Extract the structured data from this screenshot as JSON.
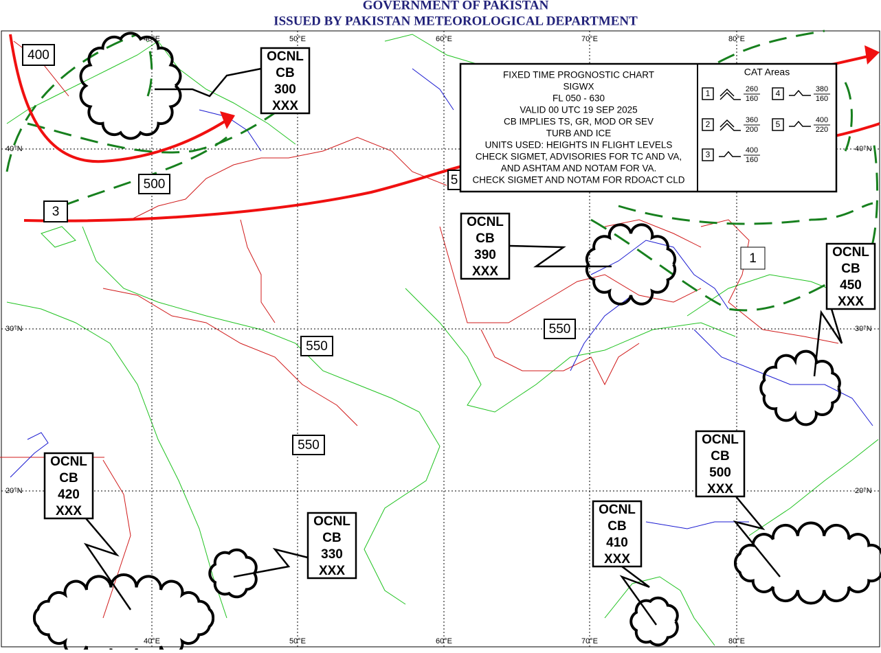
{
  "header": {
    "title": "GOVERNMENT OF PAKISTAN",
    "subtitle": "ISSUED BY PAKISTAN METEOROLOGICAL DEPARTMENT"
  },
  "map": {
    "longitude_labels": [
      "40°E",
      "50°E",
      "60°E",
      "70°E",
      "80°E"
    ],
    "latitude_labels": [
      "40°N",
      "30°N",
      "20°N"
    ]
  },
  "info_box": {
    "lines": [
      "FIXED TIME PROGNOSTIC CHART",
      "SIGWX",
      "FL 050 - 630",
      "VALID 00 UTC 19 SEP 2025",
      "CB IMPLIES TS, GR, MOD OR SEV",
      "TURB AND ICE",
      "UNITS USED: HEIGHTS IN FLIGHT LEVELS",
      "CHECK SIGMET, ADVISORIES FOR TC AND VA,",
      "AND ASHTAM AND NOTAM FOR VA.",
      "CHECK SIGMET AND NOTAM FOR RDOACT CLD"
    ]
  },
  "cat_legend": {
    "title": "CAT Areas",
    "items": [
      {
        "id": "1",
        "top": "260",
        "bottom": "160"
      },
      {
        "id": "2",
        "top": "360",
        "bottom": "200"
      },
      {
        "id": "3",
        "top": "400",
        "bottom": "160"
      },
      {
        "id": "4",
        "top": "380",
        "bottom": "160"
      },
      {
        "id": "5",
        "top": "400",
        "bottom": "220"
      }
    ]
  },
  "labels": [
    "400",
    "500",
    "3",
    "550",
    "550",
    "550",
    "1",
    "5"
  ],
  "cb_areas": [
    {
      "lines": [
        "OCNL",
        "CB",
        "300",
        "XXX"
      ]
    },
    {
      "lines": [
        "OCNL",
        "CB",
        "390",
        "XXX"
      ]
    },
    {
      "lines": [
        "OCNL",
        "CB",
        "450",
        "XXX"
      ]
    },
    {
      "lines": [
        "OCNL",
        "CB",
        "420",
        "XXX"
      ]
    },
    {
      "lines": [
        "OCNL",
        "CB",
        "330",
        "XXX"
      ]
    },
    {
      "lines": [
        "OCNL",
        "CB",
        "500",
        "XXX"
      ]
    },
    {
      "lines": [
        "OCNL",
        "CB",
        "410",
        "XXX"
      ]
    }
  ]
}
